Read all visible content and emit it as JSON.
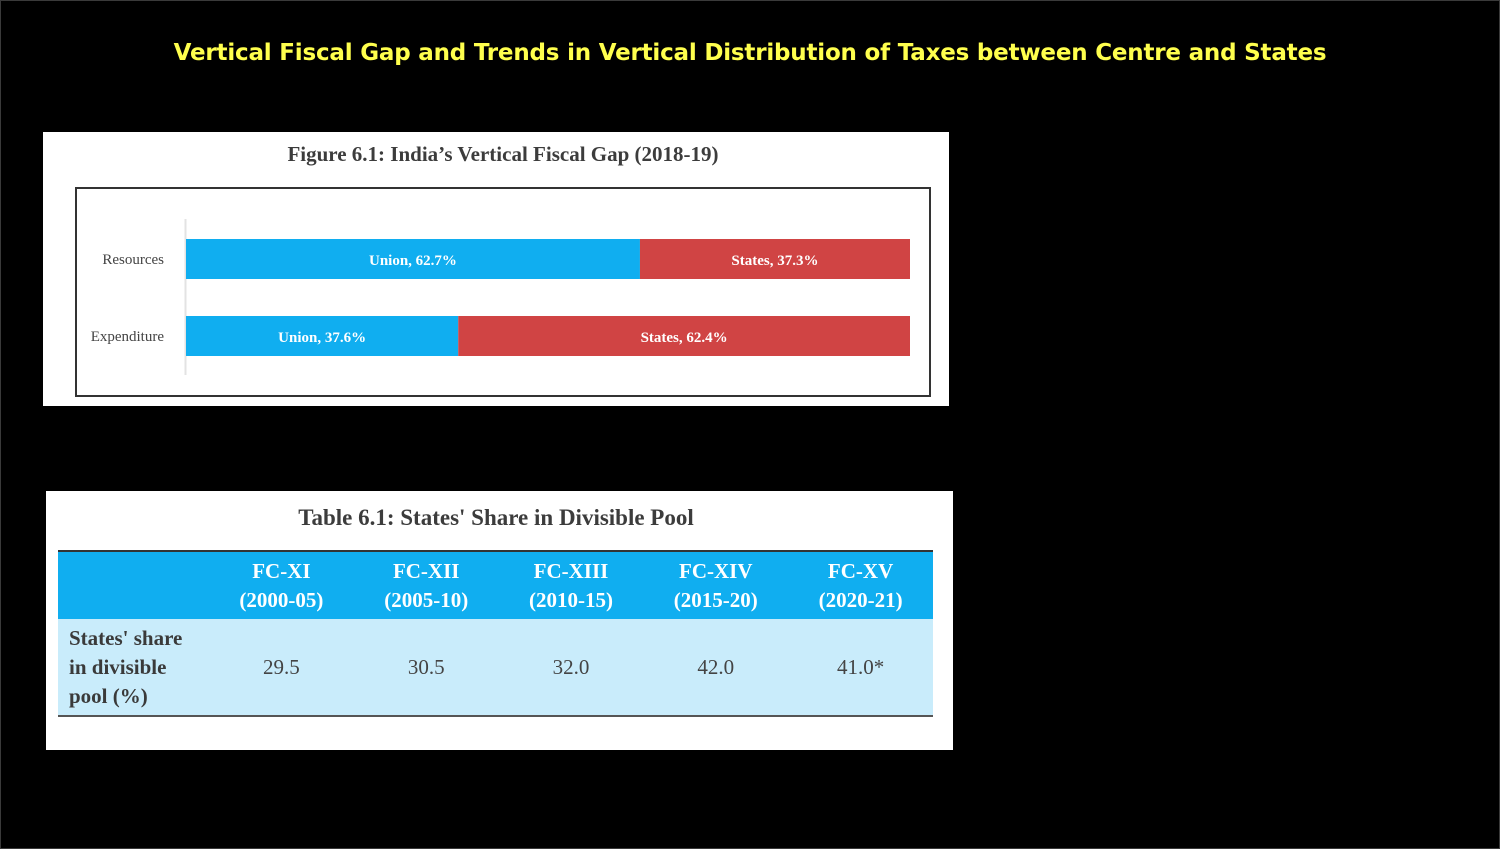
{
  "slide": {
    "title": "Vertical Fiscal Gap and Trends in Vertical Distribution of Taxes between Centre and States"
  },
  "figure": {
    "title": "Figure 6.1: India’s Vertical Fiscal Gap (2018-19)"
  },
  "chart_data": {
    "type": "bar",
    "orientation": "horizontal",
    "stacked": true,
    "title": "Figure 6.1: India’s Vertical Fiscal Gap (2018-19)",
    "categories": [
      "Resources",
      "Expenditure"
    ],
    "series": [
      {
        "name": "Union",
        "values": [
          62.7,
          37.6
        ],
        "labels": [
          "Union, 62.7%",
          "Union, 37.6%"
        ],
        "color": "#10aef0"
      },
      {
        "name": "States",
        "values": [
          37.3,
          62.4
        ],
        "labels": [
          "States, 37.3%",
          "States, 62.4%"
        ],
        "color": "#d04444"
      }
    ],
    "xlim": [
      0,
      100
    ],
    "grid": false
  },
  "table": {
    "title": "Table 6.1: States' Share in Divisible Pool",
    "columns": [
      {
        "name": "FC-XI",
        "period": "(2000-05)"
      },
      {
        "name": "FC-XII",
        "period": "(2005-10)"
      },
      {
        "name": "FC-XIII",
        "period": "(2010-15)"
      },
      {
        "name": "FC-XIV",
        "period": "(2015-20)"
      },
      {
        "name": "FC-XV",
        "period": "(2020-21)"
      }
    ],
    "row_label_lines": [
      "States' share",
      "in divisible",
      "pool (%)"
    ],
    "values": [
      "29.5",
      "30.5",
      "32.0",
      "42.0",
      "41.0*"
    ]
  },
  "colors": {
    "title": "#ffff4d",
    "union": "#10aef0",
    "states": "#d04444",
    "table_header": "#10aef0",
    "table_body": "#c9ecfb"
  }
}
